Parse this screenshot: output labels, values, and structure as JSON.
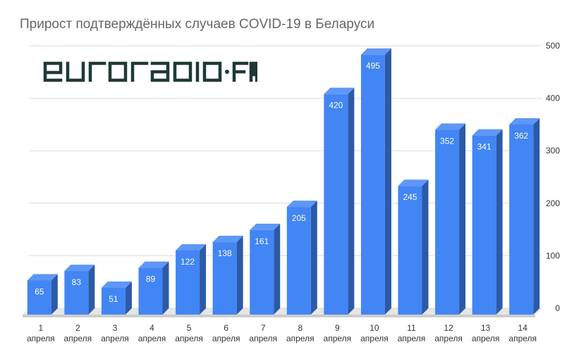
{
  "chart_data": {
    "type": "bar",
    "title": "Прирост подтверждённых случаев COVID-19 в Беларуси",
    "categories": [
      [
        "1",
        "апреля"
      ],
      [
        "2",
        "апреля"
      ],
      [
        "3",
        "апреля"
      ],
      [
        "4",
        "апреля"
      ],
      [
        "5",
        "апреля"
      ],
      [
        "6",
        "апреля"
      ],
      [
        "7",
        "апреля"
      ],
      [
        "8",
        "апреля"
      ],
      [
        "9",
        "апреля"
      ],
      [
        "10",
        "апреля"
      ],
      [
        "11",
        "апреля"
      ],
      [
        "12",
        "апреля"
      ],
      [
        "13",
        "апреля"
      ],
      [
        "14",
        "апреля"
      ]
    ],
    "values": [
      65,
      83,
      51,
      89,
      122,
      138,
      161,
      205,
      420,
      495,
      245,
      352,
      341,
      362
    ],
    "ylim": [
      0,
      500
    ],
    "yticks": [
      0,
      100,
      200,
      300,
      400,
      500
    ],
    "axis_side": "right",
    "grid": true,
    "style_3d": true,
    "colors": {
      "bar_front": "#4285f4",
      "bar_side": "#2c5aa8",
      "bar_top": "#5e97f6",
      "grid": "#d9d9d9"
    }
  },
  "logo": {
    "text": "euroradio·fm",
    "color": "#1e3a36"
  }
}
